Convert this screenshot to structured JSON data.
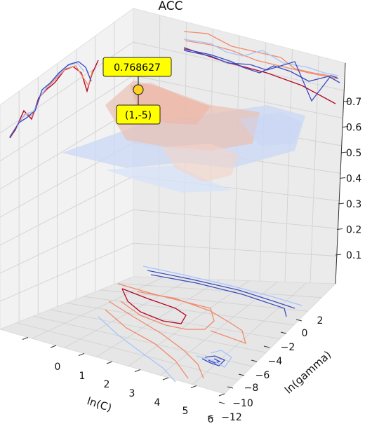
{
  "chart_data": {
    "type": "surface3d",
    "title": "ACC",
    "xlabel": "ln(C)",
    "ylabel": "ln(gamma)",
    "zlabel": "",
    "x_ticks": [
      "0",
      "1",
      "2",
      "3",
      "4",
      "5",
      "6"
    ],
    "y_ticks": [
      "2",
      "0",
      "−2",
      "−4",
      "−6",
      "−8",
      "−10",
      "−12"
    ],
    "z_ticks": [
      "0.1",
      "0.2",
      "0.3",
      "0.4",
      "0.5",
      "0.6",
      "0.7"
    ],
    "colormap": "coolwarm",
    "grid": true,
    "annotation": {
      "value": "0.768627",
      "point": "(1,-5)",
      "x": 1,
      "y": -5,
      "z": 0.768627,
      "box_color": "#ffff00"
    },
    "colors": {
      "high": "#b40426",
      "mid_high": "#f08a6a",
      "mid_low": "#a6c4fe",
      "low": "#3b4cc0",
      "marker": "#ffd21f"
    }
  }
}
